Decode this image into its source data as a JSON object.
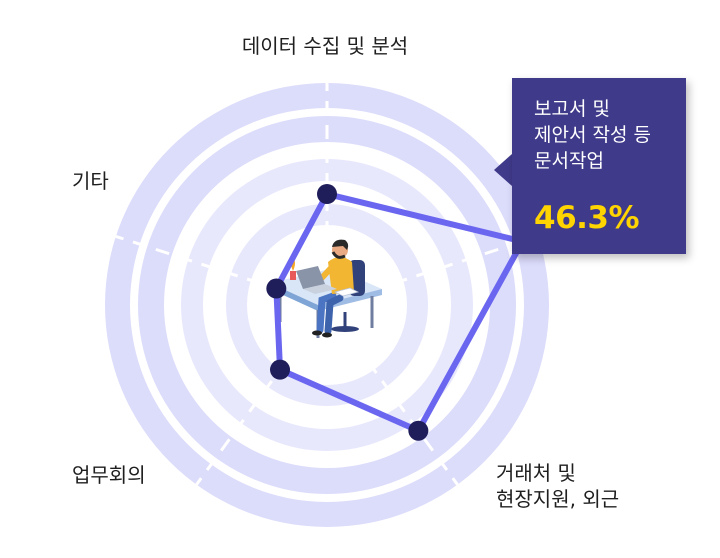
{
  "chart_data": {
    "type": "radar",
    "title": "",
    "categories": [
      "데이터 수집 및 분석",
      "보고서 및\n제안서 작성 등\n문서작업",
      "거래처 및\n현장지원, 외근",
      "업무회의",
      "기타"
    ],
    "values": [
      25,
      46.3,
      35,
      18,
      12
    ],
    "value_unit": "%",
    "rings": 4,
    "highlight": {
      "category_index": 1,
      "label": "보고서 및\n제안서 작성 등\n문서작업",
      "value_text": "46.3%"
    }
  },
  "labels": {
    "top": "데이터 수집 및 분석",
    "left": "기타",
    "bottom_left": "업무회의",
    "bottom_right": "거래처 및\n현장지원, 외근"
  },
  "colors": {
    "outer_ring": "#dcdcfb",
    "inner_ring": "#e8e8fd",
    "gap": "#ffffff",
    "series_line": "#6b66f0",
    "point": "#1f1d5a",
    "callout_bg": "#3f3a8a",
    "callout_value": "#ffd400"
  },
  "center_image": "person-working-at-laptop-illustration"
}
